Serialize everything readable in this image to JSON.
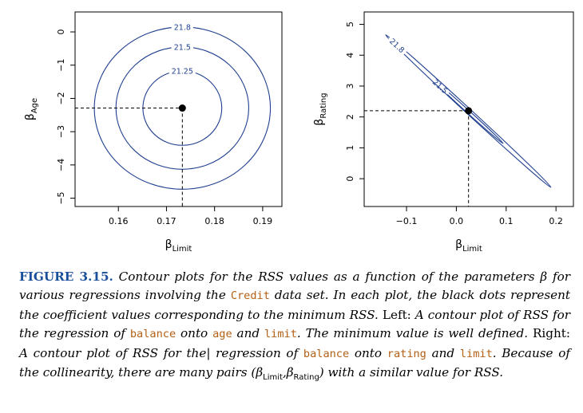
{
  "chart_data": [
    {
      "type": "contour",
      "xlabel": "β",
      "xlabel_sub": "Limit",
      "ylabel": "β",
      "ylabel_sub": "Age",
      "xlim": [
        0.151,
        0.194
      ],
      "ylim": [
        -5.25,
        0.6
      ],
      "xticks": [
        0.16,
        0.17,
        0.18,
        0.19
      ],
      "xtick_labels": [
        "0.16",
        "0.17",
        "0.18",
        "0.19"
      ],
      "yticks": [
        0,
        -1,
        -2,
        -3,
        -4,
        -5
      ],
      "ytick_labels": [
        "0",
        "−1",
        "−2",
        "−3",
        "−4",
        "−5"
      ],
      "minimum": {
        "x": 0.1733,
        "y": -2.29
      },
      "contours": [
        {
          "label": "21.25",
          "half_width_x": 0.0082,
          "half_height_y": 1.12
        },
        {
          "label": "21.5",
          "half_width_x": 0.0138,
          "half_height_y": 1.84
        },
        {
          "label": "21.8",
          "half_width_x": 0.0183,
          "half_height_y": 2.44
        }
      ]
    },
    {
      "type": "contour",
      "xlabel": "β",
      "xlabel_sub": "Limit",
      "ylabel": "β",
      "ylabel_sub": "Rating",
      "xlim": [
        -0.185,
        0.235
      ],
      "ylim": [
        -0.9,
        5.4
      ],
      "xticks": [
        -0.1,
        0.0,
        0.1,
        0.2
      ],
      "xtick_labels": [
        "−0.1",
        "0.0",
        "0.1",
        "0.2"
      ],
      "yticks": [
        0,
        1,
        2,
        3,
        4,
        5
      ],
      "ytick_labels": [
        "0",
        "1",
        "2",
        "3",
        "4",
        "5"
      ],
      "minimum": {
        "x": 0.0245,
        "y": 2.2
      },
      "contours": [
        {
          "label": "21.5",
          "from": [
            -0.048,
            3.22
          ],
          "to": [
            0.094,
            1.14
          ],
          "half_width": 0.045
        },
        {
          "label": "21.8",
          "from": [
            -0.142,
            4.66
          ],
          "to": [
            0.19,
            -0.28
          ],
          "half_width": 0.085
        }
      ]
    }
  ],
  "caption": {
    "figure_label": "FIGURE 3.15.",
    "p1": " Contour plots for the RSS values as a function of the parameters ",
    "beta": "β",
    "p2": " for various regressions involving the ",
    "code_credit": "Credit",
    "p3": " data set. In each plot, the black dots represent the coefficient values corresponding to the minimum RSS. ",
    "left_word": "Left:",
    "p4": " A contour plot of RSS for the regression of ",
    "code_balance": "balance",
    "p5": " onto ",
    "code_age": "age",
    "p6": " and ",
    "code_limit": "limit",
    "p7": ". The minimum value is well defined. ",
    "right_word": "Right:",
    "p8": " A contour plot of RSS for the| regression of ",
    "p9": " onto ",
    "code_rating": "rating",
    "p10": " and ",
    "p11": ". Because of the collinearity, there are many pairs (",
    "sub_limit": "Limit",
    "comma": ",",
    "sub_rating": "Rating",
    "p12": ") with a similar value for RSS."
  },
  "colors": {
    "contour": "#1f3f8f",
    "dot": "#000000",
    "figure_label": "#1a4f9a",
    "code": "#b35f14"
  }
}
